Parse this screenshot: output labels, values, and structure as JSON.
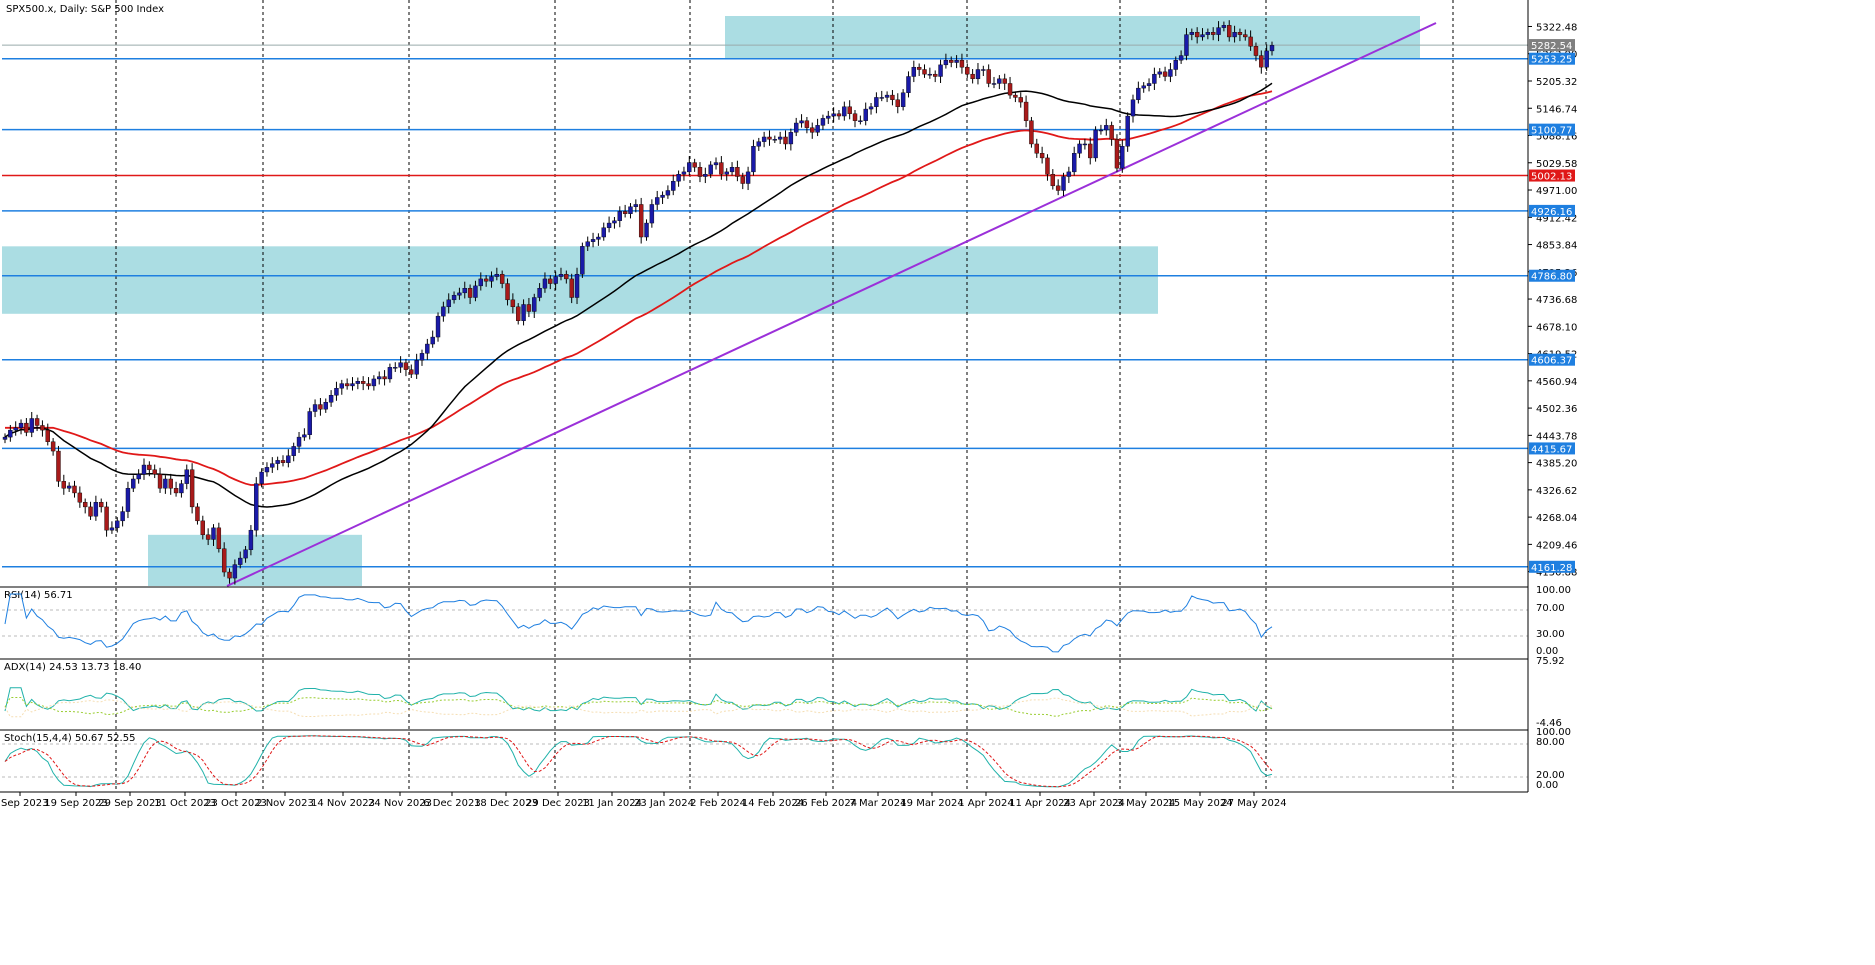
{
  "title": "SPX500.x, Daily:  S&P 500 Index",
  "chart_data": {
    "type": "candlestick",
    "symbol": "SPX500.x",
    "timeframe": "Daily",
    "description": "S&P 500 Index",
    "price_axis_labels": [
      "5322.48",
      "5263.90",
      "5205.32",
      "5146.74",
      "5088.16",
      "5029.58",
      "4971.00",
      "4912.42",
      "4853.84",
      "4795.26",
      "4736.68",
      "4678.10",
      "4619.52",
      "4560.94",
      "4502.36",
      "4443.78",
      "4385.20",
      "4326.62",
      "4268.04",
      "4209.46",
      "4150.88"
    ],
    "x_labels": [
      "7 Sep 2023",
      "19 Sep 2023",
      "29 Sep 2023",
      "11 Oct 2023",
      "23 Oct 2023",
      "2 Nov 2023",
      "14 Nov 2023",
      "24 Nov 2023",
      "6 Dec 2023",
      "18 Dec 2023",
      "29 Dec 2023",
      "11 Jan 2024",
      "23 Jan 2024",
      "2 Feb 2024",
      "14 Feb 2024",
      "26 Feb 2024",
      "7 Mar 2024",
      "19 Mar 2024",
      "1 Apr 2024",
      "11 Apr 2024",
      "23 Apr 2024",
      "3 May 2024",
      "15 May 2024",
      "27 May 2024"
    ],
    "price_range": [
      4120,
      5345
    ],
    "grid": "vertical dashed",
    "levels": [
      {
        "value": 5253.25,
        "label": "5253.25",
        "color": "#1e7fe0"
      },
      {
        "value": 5100.77,
        "label": "5100.77",
        "color": "#1e7fe0"
      },
      {
        "value": 5002.13,
        "label": "5002.13",
        "color": "#e01818"
      },
      {
        "value": 4926.16,
        "label": "4926.16",
        "color": "#1e7fe0"
      },
      {
        "value": 4786.8,
        "label": "4786.80",
        "color": "#1e7fe0"
      },
      {
        "value": 4606.37,
        "label": "4606.37",
        "color": "#1e7fe0"
      },
      {
        "value": 4415.67,
        "label": "4415.67",
        "color": "#1e7fe0"
      },
      {
        "value": 4161.28,
        "label": "4161.28",
        "color": "#1e7fe0"
      }
    ],
    "current_price": {
      "value": 5282.54,
      "label": "5282.54"
    },
    "zones": [
      {
        "price_top": 5345,
        "price_bottom": 5253,
        "from": "19 Mar 2024",
        "to": "after 27 May 2024"
      },
      {
        "price_top": 4850,
        "price_bottom": 4705,
        "from": "7 Sep 2023",
        "to": "11 Apr 2024"
      },
      {
        "price_top": 4230,
        "price_bottom": 4120,
        "from": "11 Oct 2023",
        "to": "14 Nov 2023"
      }
    ],
    "trendline": {
      "from_price": 4120,
      "from_date": "23 Oct 2023",
      "to_price": 5330,
      "to_date": "after 27 May 2024",
      "color": "#9b30d9"
    },
    "moving_averages": [
      {
        "color": "#000000"
      },
      {
        "color": "#e01818"
      }
    ],
    "close_series": [
      4440,
      4455,
      4460,
      4470,
      4450,
      4480,
      4465,
      4455,
      4430,
      4410,
      4345,
      4330,
      4335,
      4320,
      4300,
      4290,
      4270,
      4300,
      4290,
      4240,
      4245,
      4260,
      4280,
      4330,
      4350,
      4360,
      4380,
      4370,
      4360,
      4330,
      4350,
      4330,
      4320,
      4340,
      4370,
      4290,
      4260,
      4230,
      4220,
      4245,
      4200,
      4150,
      4137,
      4166,
      4180,
      4198,
      4240,
      4340,
      4365,
      4375,
      4383,
      4390,
      4385,
      4400,
      4420,
      4440,
      4445,
      4495,
      4510,
      4500,
      4515,
      4530,
      4545,
      4555,
      4550,
      4555,
      4560,
      4555,
      4550,
      4565,
      4570,
      4565,
      4590,
      4590,
      4600,
      4585,
      4575,
      4605,
      4620,
      4640,
      4655,
      4700,
      4720,
      4735,
      4745,
      4750,
      4760,
      4740,
      4765,
      4780,
      4775,
      4785,
      4790,
      4770,
      4735,
      4720,
      4690,
      4725,
      4710,
      4740,
      4760,
      4780,
      4770,
      4785,
      4790,
      4780,
      4740,
      4790,
      4850,
      4860,
      4865,
      4870,
      4890,
      4900,
      4905,
      4925,
      4920,
      4935,
      4940,
      4870,
      4900,
      4940,
      4955,
      4960,
      4970,
      4990,
      5005,
      5010,
      5030,
      5020,
      5000,
      5005,
      5025,
      5030,
      5005,
      5010,
      5020,
      5000,
      4985,
      5010,
      5065,
      5075,
      5085,
      5080,
      5080,
      5085,
      5070,
      5095,
      5115,
      5120,
      5105,
      5095,
      5110,
      5125,
      5130,
      5135,
      5130,
      5150,
      5135,
      5120,
      5120,
      5145,
      5150,
      5170,
      5170,
      5175,
      5165,
      5150,
      5180,
      5215,
      5235,
      5230,
      5220,
      5220,
      5215,
      5240,
      5250,
      5245,
      5250,
      5235,
      5220,
      5210,
      5230,
      5230,
      5200,
      5200,
      5210,
      5200,
      5175,
      5170,
      5160,
      5120,
      5070,
      5050,
      5040,
      5005,
      4980,
      4970,
      5000,
      5010,
      5050,
      5070,
      5070,
      5040,
      5100,
      5100,
      5110,
      5080,
      5018,
      5065,
      5130,
      5165,
      5190,
      5195,
      5200,
      5220,
      5225,
      5215,
      5230,
      5250,
      5260,
      5305,
      5310,
      5300,
      5305,
      5310,
      5305,
      5320,
      5325,
      5300,
      5310,
      5305,
      5300,
      5280,
      5260,
      5235,
      5270,
      5282
    ]
  },
  "panels": {
    "rsi": {
      "label": "RSI(14) 56.71",
      "axis": [
        "100.00",
        "70.00",
        "30.00",
        "0.00"
      ],
      "color": "#1e7fe0"
    },
    "adx": {
      "label": "ADX(14) 24.53 13.73 18.40",
      "axis": [
        "75.92",
        "-4.46"
      ],
      "colors": [
        "#20b2aa",
        "#9acd32",
        "#f5deb3"
      ]
    },
    "stoch": {
      "label": "Stoch(15,4,4) 50.67 52.55",
      "axis": [
        "100.00",
        "80.00",
        "20.00",
        "0.00"
      ],
      "colors": [
        "#20b2aa",
        "#e01818"
      ]
    }
  }
}
